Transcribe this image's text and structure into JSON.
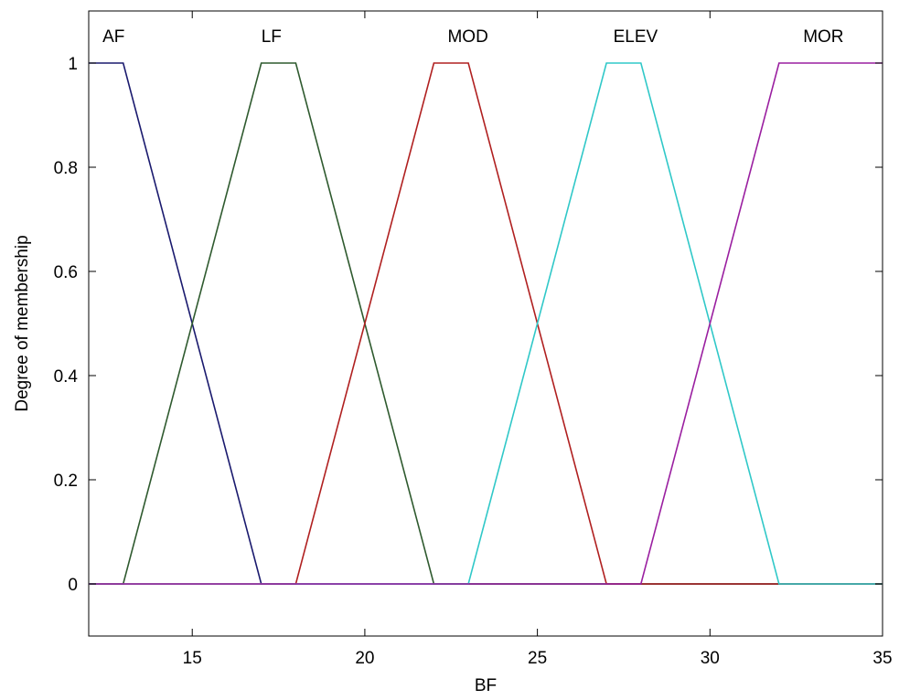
{
  "chart_data": {
    "type": "line",
    "title": "",
    "xlabel": "BF",
    "ylabel": "Degree of membership",
    "xlim": [
      12,
      35
    ],
    "ylim": [
      -0.1,
      1.1
    ],
    "xticks": [
      15,
      20,
      25,
      30,
      35
    ],
    "yticks": [
      0,
      0.2,
      0.4,
      0.6,
      0.8,
      1
    ],
    "grid": false,
    "series": [
      {
        "name": "AF",
        "color": "#1a1a6e",
        "x": [
          12,
          13,
          17,
          35
        ],
        "y": [
          1,
          1,
          0,
          0
        ]
      },
      {
        "name": "LF",
        "color": "#2f5a2f",
        "x": [
          12,
          13,
          17,
          18,
          22,
          35
        ],
        "y": [
          0,
          0,
          1,
          1,
          0,
          0
        ]
      },
      {
        "name": "MOD",
        "color": "#b02020",
        "x": [
          12,
          18,
          22,
          23,
          27,
          35
        ],
        "y": [
          0,
          0,
          1,
          1,
          0,
          0
        ]
      },
      {
        "name": "ELEV",
        "color": "#30c8c8",
        "x": [
          12,
          23,
          27,
          28,
          32,
          35
        ],
        "y": [
          0,
          0,
          1,
          1,
          0,
          0
        ]
      },
      {
        "name": "MOR",
        "color": "#9a1fa0",
        "x": [
          12,
          28,
          32,
          35
        ],
        "y": [
          0,
          0,
          1,
          1
        ]
      }
    ],
    "annotations": [
      {
        "text": "AF",
        "x": 12.4,
        "y": 1.04
      },
      {
        "text": "LF",
        "x": 17.0,
        "y": 1.04
      },
      {
        "text": "MOD",
        "x": 22.4,
        "y": 1.04
      },
      {
        "text": "ELEV",
        "x": 27.2,
        "y": 1.04
      },
      {
        "text": "MOR",
        "x": 32.7,
        "y": 1.04
      }
    ]
  }
}
